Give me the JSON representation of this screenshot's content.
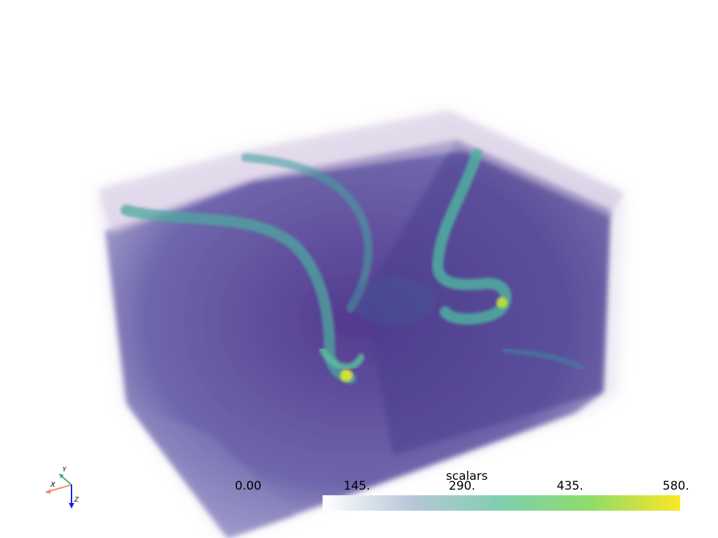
{
  "scalar_bar": {
    "title": "scalars",
    "ticks": [
      "0.00",
      "145.",
      "290.",
      "435.",
      "580."
    ],
    "colors": [
      "#ffffff",
      "#b6c7d9",
      "#7fcfb0",
      "#8fdc6a",
      "#fde725"
    ]
  },
  "orientation_axes": {
    "x_label": "X",
    "y_label": "Y",
    "z_label": "Z",
    "x_color": "#f08c64",
    "y_color": "#3cb371",
    "z_color": "#1a1aff"
  },
  "volume": {
    "base_color": "#463c96",
    "high_color": "#fde725",
    "mid_color": "#5bb8a0"
  }
}
